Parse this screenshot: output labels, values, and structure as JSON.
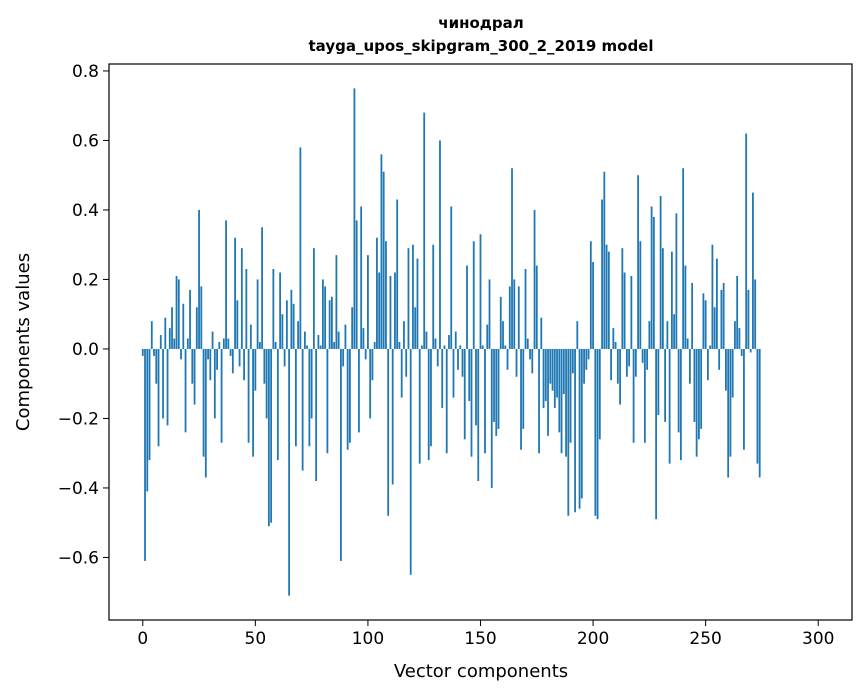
{
  "chart_data": {
    "type": "bar",
    "title": "чинодрал",
    "subtitle": "tayga_upos_skipgram_300_2_2019 model",
    "xlabel": "Vector components",
    "ylabel": "Components values",
    "xlim": [
      -15,
      315
    ],
    "ylim": [
      -0.78,
      0.82
    ],
    "xticks": [
      0,
      50,
      100,
      150,
      200,
      250,
      300
    ],
    "yticks": [
      -0.6,
      -0.4,
      -0.2,
      0.0,
      0.2,
      0.4,
      0.6,
      0.8
    ],
    "ytick_labels": [
      "−0.6",
      "−0.4",
      "−0.2",
      "0.0",
      "0.2",
      "0.4",
      "0.6",
      "0.8"
    ],
    "bar_color": "#1f77b4",
    "grid": false,
    "values": [
      -0.02,
      -0.61,
      -0.41,
      -0.32,
      0.08,
      -0.02,
      -0.1,
      -0.28,
      0.04,
      -0.2,
      0.09,
      -0.22,
      0.06,
      0.12,
      0.03,
      0.21,
      0.2,
      -0.03,
      0.13,
      -0.24,
      0.03,
      0.17,
      -0.1,
      -0.16,
      0.12,
      0.4,
      0.18,
      -0.31,
      -0.37,
      -0.03,
      -0.09,
      0.05,
      -0.2,
      -0.06,
      0.02,
      -0.27,
      0.03,
      0.37,
      0.03,
      -0.02,
      -0.07,
      0.32,
      0.14,
      -0.05,
      0.29,
      -0.09,
      0.23,
      -0.27,
      0.07,
      -0.31,
      -0.12,
      0.2,
      0.02,
      0.35,
      -0.1,
      -0.2,
      -0.51,
      -0.5,
      0.23,
      0.02,
      -0.32,
      0.22,
      0.1,
      -0.05,
      0.14,
      -0.71,
      0.17,
      0.13,
      -0.28,
      0.08,
      0.58,
      -0.35,
      0.05,
      0.01,
      -0.28,
      -0.2,
      0.29,
      -0.38,
      0.04,
      0.01,
      0.2,
      0.18,
      -0.3,
      0.14,
      0.15,
      0.02,
      0.27,
      0.05,
      -0.61,
      -0.05,
      0.07,
      -0.29,
      -0.27,
      0.12,
      0.75,
      0.37,
      -0.24,
      0.41,
      0.06,
      -0.03,
      0.27,
      -0.2,
      -0.09,
      0.02,
      0.32,
      0.22,
      0.56,
      0.51,
      0.31,
      -0.48,
      0.21,
      -0.39,
      0.22,
      0.43,
      0.02,
      -0.14,
      0.08,
      -0.08,
      0.29,
      -0.65,
      0.3,
      0.12,
      0.26,
      -0.33,
      0.01,
      0.68,
      0.05,
      -0.32,
      -0.28,
      0.3,
      0.03,
      -0.05,
      0.6,
      -0.17,
      0.01,
      -0.3,
      0.04,
      0.41,
      -0.14,
      0.05,
      -0.06,
      0.01,
      -0.08,
      -0.26,
      0.24,
      -0.15,
      -0.31,
      0.31,
      -0.22,
      -0.38,
      0.33,
      0.01,
      -0.3,
      0.07,
      0.2,
      -0.4,
      -0.21,
      -0.25,
      -0.23,
      0.15,
      0.08,
      0.01,
      -0.06,
      0.18,
      0.52,
      0.2,
      -0.08,
      0.18,
      -0.29,
      -0.23,
      0.23,
      0.03,
      -0.03,
      -0.07,
      0.4,
      0.24,
      -0.3,
      0.09,
      -0.17,
      -0.15,
      -0.25,
      -0.1,
      -0.12,
      -0.17,
      -0.14,
      -0.24,
      -0.3,
      -0.13,
      -0.31,
      -0.48,
      -0.27,
      -0.07,
      -0.47,
      0.08,
      -0.46,
      -0.43,
      -0.1,
      -0.06,
      -0.03,
      0.31,
      0.25,
      -0.48,
      -0.49,
      -0.26,
      0.43,
      0.51,
      0.3,
      0.28,
      -0.09,
      0.06,
      0.02,
      -0.1,
      -0.16,
      0.29,
      0.22,
      -0.08,
      -0.05,
      0.21,
      -0.27,
      -0.08,
      0.5,
      0.31,
      -0.04,
      -0.27,
      -0.06,
      0.08,
      0.41,
      0.38,
      -0.49,
      -0.19,
      0.44,
      0.29,
      -0.21,
      0.08,
      -0.33,
      0.28,
      0.1,
      0.39,
      -0.24,
      -0.32,
      0.52,
      0.24,
      0.03,
      -0.1,
      0.19,
      -0.21,
      -0.31,
      -0.26,
      -0.23,
      0.16,
      0.14,
      -0.09,
      0.01,
      0.3,
      0.12,
      0.26,
      -0.06,
      0.17,
      0.19,
      -0.12,
      -0.37,
      -0.31,
      -0.14,
      0.08,
      0.21,
      0.06,
      -0.02,
      -0.29,
      0.62,
      0.17,
      -0.01,
      0.45,
      0.2,
      -0.33,
      -0.37
    ]
  }
}
